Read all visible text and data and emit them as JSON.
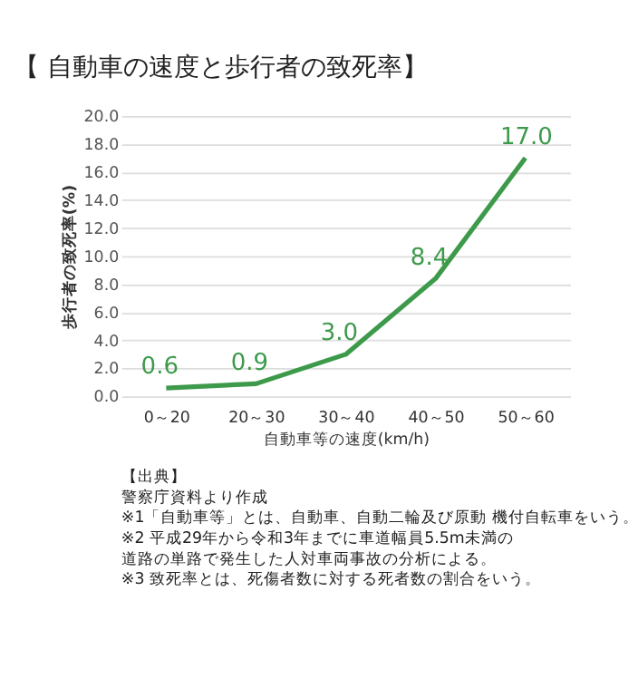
{
  "chart_data": {
    "type": "line",
    "title": "【 自動車の速度と歩行者の致死率】",
    "xlabel": "自動車等の速度(km/h)",
    "ylabel": "歩行者の致死率(%)",
    "categories": [
      "0～20",
      "20～30",
      "30～40",
      "40～50",
      "50～60"
    ],
    "series": [
      {
        "color": "#3d9a4b",
        "values": [
          0.6,
          0.9,
          3.0,
          8.4,
          17.0
        ],
        "value_labels": [
          "0.6",
          "0.9",
          "3.0",
          "8.4",
          "17.0"
        ]
      }
    ],
    "ylim": [
      0,
      20
    ],
    "yticks": [
      {
        "value": 0,
        "label": "0.0"
      },
      {
        "value": 2,
        "label": "2.0"
      },
      {
        "value": 4,
        "label": "4.0"
      },
      {
        "value": 6,
        "label": "6.0"
      },
      {
        "value": 8,
        "label": "8.0"
      },
      {
        "value": 10,
        "label": "10.0"
      },
      {
        "value": 12,
        "label": "12.0"
      },
      {
        "value": 14,
        "label": "14.0"
      },
      {
        "value": 16,
        "label": "16.0"
      },
      {
        "value": 18,
        "label": "18.0"
      },
      {
        "value": 20,
        "label": "20.0"
      }
    ],
    "grid": "y",
    "marker": "none",
    "line_style": "solid",
    "annotations": [
      "【出典】",
      "警察庁資料より作成",
      "※1「自動車等」とは、自動車、自動二輪及び原動 機付自転車をいう。",
      "※2 平成29年から令和3年までに車道幅員5.5m未満の",
      "　　道路の単路で発生した人対車両事故の分析による。",
      "※3 致死率とは、死傷者数に対する死者数の割合をいう。"
    ]
  }
}
